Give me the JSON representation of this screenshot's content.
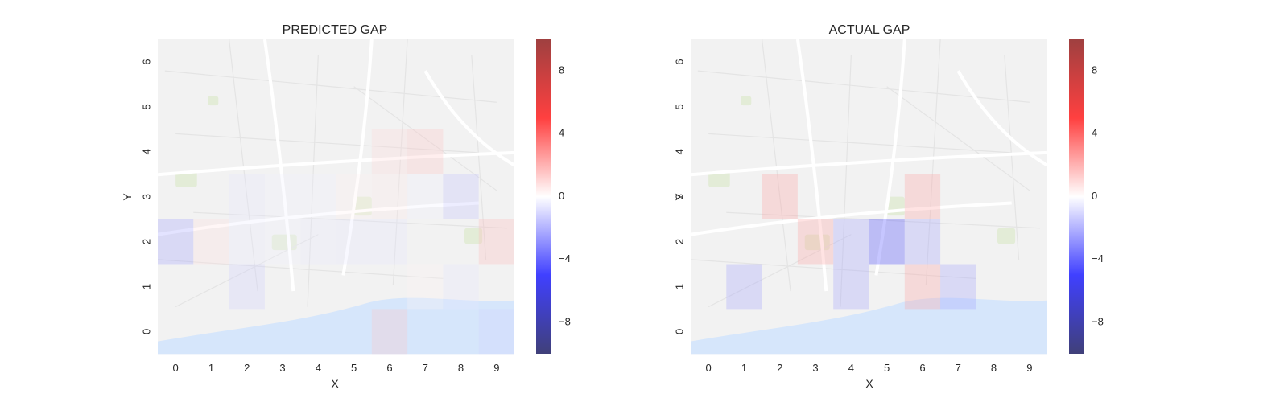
{
  "colors": {
    "page_bg": "#ffffff",
    "map_base": "#f2f2f2",
    "map_road": "#ffffff",
    "map_road_minor": "#e4e4e4",
    "map_water": "#d6e6fb",
    "map_green": "#e3ecd7",
    "text": "#262626",
    "cmap": "seismic (blue → white → red)"
  },
  "chart_data": [
    {
      "type": "heatmap",
      "title": "PREDICTED GAP",
      "xlabel": "X",
      "ylabel": "Y",
      "x_ticks": [
        "0",
        "1",
        "2",
        "3",
        "4",
        "5",
        "6",
        "7",
        "8",
        "9"
      ],
      "y_ticks": [
        "0",
        "1",
        "2",
        "3",
        "4",
        "5",
        "6"
      ],
      "xlim": [
        -0.5,
        9.5
      ],
      "ylim": [
        -0.5,
        6.5
      ],
      "background": "street map of Porto",
      "colorbar": {
        "vmin": -10,
        "vmax": 10,
        "ticks": [
          8,
          4,
          0,
          -4,
          -8
        ],
        "tick_labels": [
          "8",
          "4",
          "0",
          "−4",
          "−8"
        ]
      },
      "cells": [
        {
          "x": 0,
          "y": 2,
          "value": -2.0
        },
        {
          "x": 1,
          "y": 2,
          "value": 0.6
        },
        {
          "x": 2,
          "y": 1,
          "value": -1.0
        },
        {
          "x": 2,
          "y": 2,
          "value": -0.4
        },
        {
          "x": 2,
          "y": 3,
          "value": -0.5
        },
        {
          "x": 3,
          "y": 2,
          "value": -0.3
        },
        {
          "x": 3,
          "y": 3,
          "value": -0.3
        },
        {
          "x": 4,
          "y": 2,
          "value": -0.4
        },
        {
          "x": 4,
          "y": 3,
          "value": -0.3
        },
        {
          "x": 5,
          "y": 2,
          "value": -0.5
        },
        {
          "x": 5,
          "y": 3,
          "value": 0.3
        },
        {
          "x": 6,
          "y": 0,
          "value": 1.2
        },
        {
          "x": 6,
          "y": 2,
          "value": -0.5
        },
        {
          "x": 6,
          "y": 3,
          "value": 0.4
        },
        {
          "x": 6,
          "y": 4,
          "value": 0.8
        },
        {
          "x": 7,
          "y": 1,
          "value": 0.2
        },
        {
          "x": 7,
          "y": 3,
          "value": -0.3
        },
        {
          "x": 7,
          "y": 4,
          "value": 1.2
        },
        {
          "x": 8,
          "y": 1,
          "value": -0.5
        },
        {
          "x": 8,
          "y": 3,
          "value": -1.3
        },
        {
          "x": 9,
          "y": 0,
          "value": -0.9
        },
        {
          "x": 9,
          "y": 2,
          "value": 1.4
        }
      ]
    },
    {
      "type": "heatmap",
      "title": "ACTUAL GAP",
      "xlabel": "X",
      "ylabel": "Y",
      "x_ticks": [
        "0",
        "1",
        "2",
        "3",
        "4",
        "5",
        "6",
        "7",
        "8",
        "9"
      ],
      "y_ticks": [
        "0",
        "1",
        "2",
        "3",
        "4",
        "5",
        "6"
      ],
      "xlim": [
        -0.5,
        9.5
      ],
      "ylim": [
        -0.5,
        6.5
      ],
      "background": "street map of Porto",
      "colorbar": {
        "vmin": -10,
        "vmax": 10,
        "ticks": [
          8,
          4,
          0,
          -4,
          -8
        ],
        "tick_labels": [
          "8",
          "4",
          "0",
          "−4",
          "−8"
        ]
      },
      "cells": [
        {
          "x": 1,
          "y": 1,
          "value": -2.0
        },
        {
          "x": 2,
          "y": 3,
          "value": 2.0
        },
        {
          "x": 3,
          "y": 2,
          "value": 2.0
        },
        {
          "x": 4,
          "y": 1,
          "value": -2.0
        },
        {
          "x": 4,
          "y": 2,
          "value": -2.0
        },
        {
          "x": 5,
          "y": 2,
          "value": -4.0
        },
        {
          "x": 6,
          "y": 1,
          "value": 2.0
        },
        {
          "x": 6,
          "y": 2,
          "value": -2.0
        },
        {
          "x": 6,
          "y": 3,
          "value": 2.0
        },
        {
          "x": 7,
          "y": 1,
          "value": -2.0
        }
      ]
    }
  ]
}
